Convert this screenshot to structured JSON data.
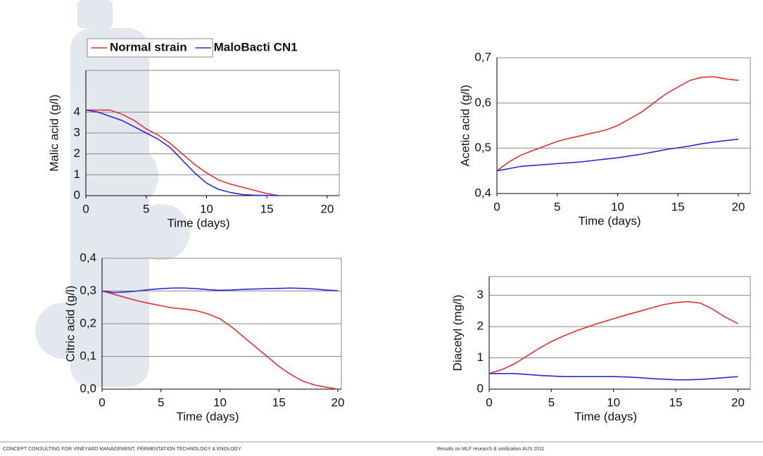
{
  "chart_data": [
    {
      "type": "line",
      "ylabel": "Malic acid (g/l)",
      "xlabel": "Time (days)",
      "grid": true,
      "legend": "above",
      "x": [
        0,
        1,
        2,
        3,
        4,
        5,
        6,
        7,
        8,
        9,
        10,
        11,
        12,
        13,
        14,
        15,
        16
      ],
      "xlim": [
        0,
        21
      ],
      "xticks": [
        0,
        5,
        10,
        15,
        20
      ],
      "ylim": [
        0,
        6
      ],
      "yticks": [
        0,
        1,
        2,
        3,
        4
      ],
      "series": [
        {
          "name": "Normal strain",
          "color": "#e03030",
          "values": [
            4.1,
            4.1,
            4.1,
            3.9,
            3.6,
            3.2,
            2.9,
            2.5,
            2.0,
            1.5,
            1.1,
            0.75,
            0.55,
            0.4,
            0.25,
            0.1,
            0.0
          ]
        },
        {
          "name": "MaloBacti CN1",
          "color": "#2a2ad0",
          "values": [
            4.1,
            4.0,
            3.8,
            3.6,
            3.3,
            3.0,
            2.7,
            2.3,
            1.7,
            1.1,
            0.6,
            0.3,
            0.15,
            0.05,
            0.02,
            0.01,
            0.0
          ]
        }
      ]
    },
    {
      "type": "line",
      "ylabel": "Acetic acid (g/l)",
      "xlabel": "Time (days)",
      "grid": true,
      "x": [
        0,
        1,
        2,
        3,
        4,
        5,
        6,
        7,
        8,
        9,
        10,
        11,
        12,
        13,
        14,
        15,
        16,
        17,
        18,
        19,
        20
      ],
      "xlim": [
        0,
        21
      ],
      "xticks": [
        0,
        5,
        10,
        15,
        20
      ],
      "ylim": [
        0.4,
        0.7
      ],
      "yticks": [
        {
          "value": 0.4,
          "label": "0,4"
        },
        {
          "value": 0.5,
          "label": "0,5"
        },
        {
          "value": 0.6,
          "label": "0,6"
        },
        {
          "value": 0.7,
          "label": "0,7"
        }
      ],
      "series": [
        {
          "color": "#e03030",
          "values": [
            0.45,
            0.47,
            0.485,
            0.495,
            0.505,
            0.515,
            0.522,
            0.528,
            0.534,
            0.54,
            0.55,
            0.565,
            0.58,
            0.6,
            0.62,
            0.635,
            0.65,
            0.657,
            0.658,
            0.653,
            0.65
          ]
        },
        {
          "color": "#2a2ad0",
          "values": [
            0.45,
            0.455,
            0.46,
            0.462,
            0.464,
            0.466,
            0.468,
            0.47,
            0.473,
            0.476,
            0.479,
            0.483,
            0.487,
            0.492,
            0.497,
            0.501,
            0.505,
            0.51,
            0.514,
            0.517,
            0.52
          ]
        }
      ]
    },
    {
      "type": "line",
      "ylabel": "Citric acid (g/l)",
      "xlabel": "Time (days)",
      "grid": true,
      "x": [
        0,
        1,
        2,
        3,
        4,
        5,
        6,
        7,
        8,
        9,
        10,
        11,
        12,
        13,
        14,
        15,
        16,
        17,
        18,
        19,
        20
      ],
      "xlim": [
        0,
        20.3
      ],
      "xticks": [
        0,
        5,
        10,
        15,
        20
      ],
      "ylim": [
        0,
        0.4
      ],
      "yticks": [
        {
          "value": 0,
          "label": "0,0"
        },
        {
          "value": 0.1,
          "label": "0,1"
        },
        {
          "value": 0.2,
          "label": "0,2"
        },
        {
          "value": 0.3,
          "label": "0,3"
        },
        {
          "value": 0.4,
          "label": "0,4"
        }
      ],
      "series": [
        {
          "color": "#e03030",
          "values": [
            0.3,
            0.29,
            0.28,
            0.27,
            0.262,
            0.255,
            0.248,
            0.245,
            0.24,
            0.23,
            0.215,
            0.19,
            0.16,
            0.13,
            0.1,
            0.07,
            0.045,
            0.025,
            0.013,
            0.006,
            0.0
          ]
        },
        {
          "color": "#2a2ad0",
          "values": [
            0.3,
            0.295,
            0.297,
            0.3,
            0.304,
            0.307,
            0.309,
            0.309,
            0.307,
            0.304,
            0.302,
            0.303,
            0.305,
            0.306,
            0.307,
            0.308,
            0.309,
            0.308,
            0.306,
            0.303,
            0.301
          ]
        }
      ]
    },
    {
      "type": "line",
      "ylabel": "Diacetyl (mg/l)",
      "xlabel": "Time (days)",
      "grid": true,
      "x": [
        0,
        1,
        2,
        3,
        4,
        5,
        6,
        7,
        8,
        9,
        10,
        11,
        12,
        13,
        14,
        15,
        16,
        17,
        18,
        19,
        20
      ],
      "xlim": [
        0,
        21
      ],
      "xticks": [
        0,
        5,
        10,
        15,
        20
      ],
      "ylim": [
        0,
        3.6
      ],
      "yticks": [
        0,
        1,
        2,
        3
      ],
      "series": [
        {
          "color": "#e03030",
          "values": [
            0.5,
            0.62,
            0.8,
            1.05,
            1.3,
            1.52,
            1.7,
            1.86,
            2.0,
            2.13,
            2.25,
            2.37,
            2.48,
            2.59,
            2.7,
            2.77,
            2.8,
            2.75,
            2.55,
            2.3,
            2.1
          ]
        },
        {
          "color": "#2a2ad0",
          "values": [
            0.5,
            0.5,
            0.5,
            0.47,
            0.44,
            0.42,
            0.4,
            0.4,
            0.4,
            0.4,
            0.4,
            0.39,
            0.37,
            0.34,
            0.32,
            0.3,
            0.3,
            0.31,
            0.34,
            0.37,
            0.4
          ]
        }
      ]
    }
  ],
  "footer": {
    "left": "CONCEPT CONSULTING FOR VINEYARD MANAGEMENT, FERMENTATION TECHNOLOGY & ENOLOGY",
    "right": "Results on MLF research & vinification AUS 2011"
  }
}
